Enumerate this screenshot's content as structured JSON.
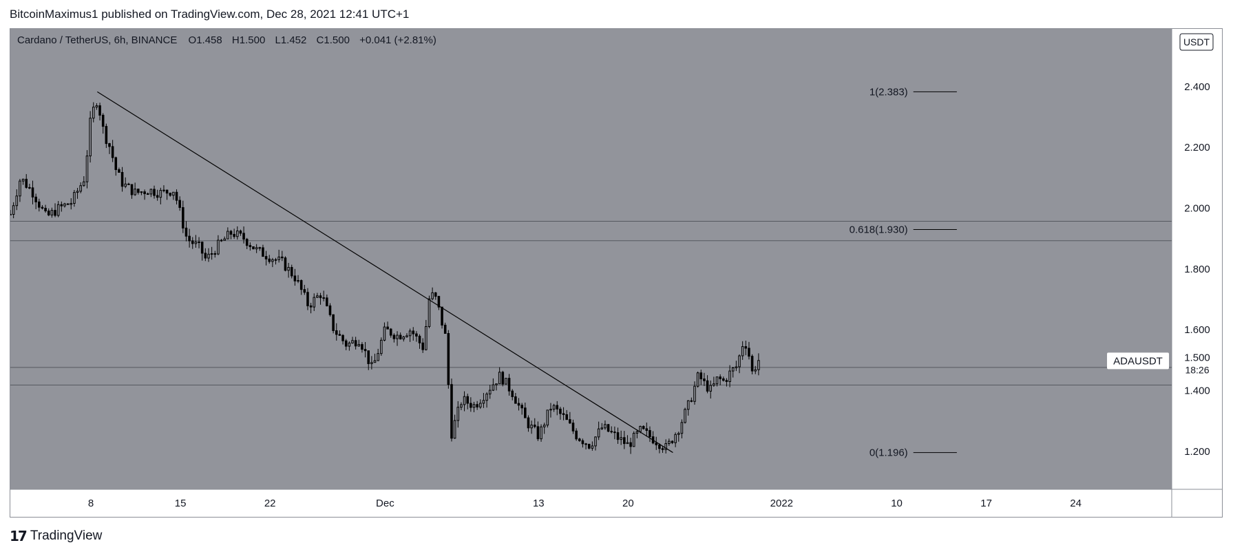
{
  "header": {
    "caption": "BitcoinMaximus1 published on TradingView.com, Dec 28, 2021 12:41 UTC+1"
  },
  "footer": {
    "brand_icon": "tradingview-logo-icon",
    "brand_label": "TradingView"
  },
  "colors": {
    "background": "#92949b",
    "axis_background": "#ffffff",
    "candle_body": "#000000",
    "line": "#000000",
    "text": "#131722"
  },
  "chart_data": {
    "type": "candlestick",
    "symbol_line": {
      "pair": "Cardano / TetherUS, 6h, BINANCE",
      "o_label": "O",
      "o": "1.458",
      "h_label": "H",
      "h": "1.500",
      "l_label": "L",
      "l": "1.452",
      "c_label": "C",
      "c": "1.500",
      "change": "+0.041 (+2.81%)"
    },
    "currency_badge": "USDT",
    "y_ticks": [
      "2.400",
      "2.200",
      "2.000",
      "1.800",
      "1.600",
      "1.400",
      "1.200"
    ],
    "y_tick_values": [
      2.4,
      2.2,
      2.0,
      1.8,
      1.6,
      1.4,
      1.2
    ],
    "ylim": [
      1.075,
      2.59
    ],
    "x_ticks": [
      {
        "label": "8",
        "day": 8
      },
      {
        "label": "15",
        "day": 15
      },
      {
        "label": "22",
        "day": 22
      },
      {
        "label": "Dec",
        "day": 31
      },
      {
        "label": "13",
        "day": 43
      },
      {
        "label": "20",
        "day": 50
      },
      {
        "label": "2022",
        "day": 62
      },
      {
        "label": "10",
        "day": 71
      },
      {
        "label": "17",
        "day": 78
      },
      {
        "label": "24",
        "day": 85
      }
    ],
    "xlim": [
      1.7,
      92.5
    ],
    "price_tag": {
      "symbol": "ADAUSDT",
      "price": "1.500",
      "countdown": "18:26",
      "value": 1.5
    },
    "horizontal_levels": [
      1.957,
      1.893,
      1.476,
      1.418
    ],
    "trendline": {
      "start": {
        "day": 8.5,
        "price": 2.383
      },
      "end": {
        "day": 53.5,
        "price": 1.196
      }
    },
    "fib_levels": [
      {
        "label": "1(2.383)",
        "value": 2.383
      },
      {
        "label": "0.618(1.930)",
        "value": 1.93
      },
      {
        "label": "0(1.196)",
        "value": 1.196
      }
    ],
    "fib_x_range": [
      72.3,
      75.7
    ],
    "price_path": [
      [
        1.7,
        1.98
      ],
      [
        2.5,
        2.1
      ],
      [
        3.5,
        2.05
      ],
      [
        4.5,
        1.97
      ],
      [
        5.5,
        2.0
      ],
      [
        6.5,
        2.02
      ],
      [
        7.5,
        2.1
      ],
      [
        8.0,
        2.3
      ],
      [
        8.5,
        2.36
      ],
      [
        9.0,
        2.25
      ],
      [
        9.5,
        2.2
      ],
      [
        10.0,
        2.12
      ],
      [
        10.5,
        2.08
      ],
      [
        11.5,
        2.05
      ],
      [
        12.5,
        2.06
      ],
      [
        13.5,
        2.05
      ],
      [
        14.5,
        2.06
      ],
      [
        15.0,
        1.98
      ],
      [
        15.5,
        1.9
      ],
      [
        16.5,
        1.87
      ],
      [
        17.0,
        1.83
      ],
      [
        18.0,
        1.88
      ],
      [
        19.0,
        1.92
      ],
      [
        20.0,
        1.9
      ],
      [
        21.0,
        1.86
      ],
      [
        22.0,
        1.84
      ],
      [
        23.0,
        1.82
      ],
      [
        24.0,
        1.77
      ],
      [
        25.0,
        1.68
      ],
      [
        26.0,
        1.72
      ],
      [
        27.0,
        1.6
      ],
      [
        28.0,
        1.55
      ],
      [
        29.0,
        1.57
      ],
      [
        30.0,
        1.47
      ],
      [
        31.0,
        1.6
      ],
      [
        32.0,
        1.58
      ],
      [
        33.0,
        1.6
      ],
      [
        34.0,
        1.54
      ],
      [
        34.5,
        1.72
      ],
      [
        35.0,
        1.7
      ],
      [
        35.7,
        1.58
      ],
      [
        36.2,
        1.26
      ],
      [
        37.0,
        1.37
      ],
      [
        38.0,
        1.35
      ],
      [
        39.0,
        1.4
      ],
      [
        40.0,
        1.45
      ],
      [
        41.0,
        1.39
      ],
      [
        42.0,
        1.3
      ],
      [
        43.0,
        1.25
      ],
      [
        44.0,
        1.35
      ],
      [
        45.0,
        1.31
      ],
      [
        46.0,
        1.25
      ],
      [
        47.0,
        1.22
      ],
      [
        48.0,
        1.28
      ],
      [
        49.0,
        1.25
      ],
      [
        50.0,
        1.22
      ],
      [
        51.0,
        1.27
      ],
      [
        52.0,
        1.24
      ],
      [
        53.0,
        1.21
      ],
      [
        54.0,
        1.28
      ],
      [
        54.8,
        1.36
      ],
      [
        55.5,
        1.45
      ],
      [
        56.0,
        1.42
      ],
      [
        56.5,
        1.4
      ],
      [
        57.0,
        1.44
      ],
      [
        57.5,
        1.43
      ],
      [
        58.0,
        1.46
      ],
      [
        58.5,
        1.48
      ],
      [
        59.0,
        1.56
      ],
      [
        59.3,
        1.55
      ],
      [
        59.7,
        1.46
      ],
      [
        60.2,
        1.5
      ]
    ]
  }
}
